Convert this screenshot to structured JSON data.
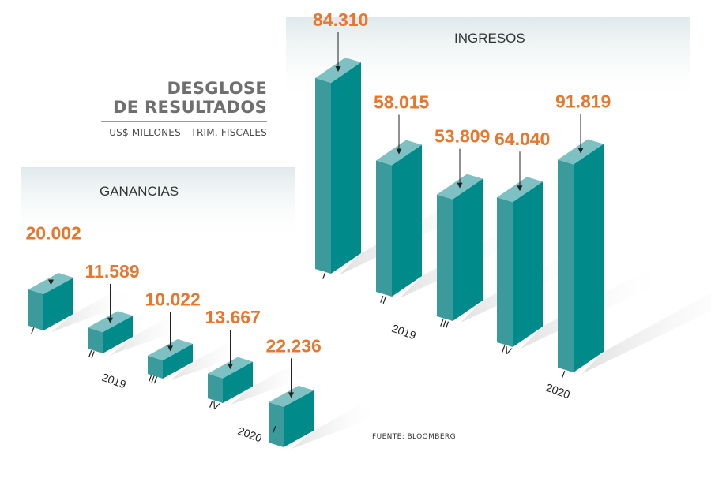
{
  "title_line1": "DESGLOSE",
  "title_line2": "DE RESULTADOS",
  "subtitle": "US$ MILLONES - TRIM. FISCALES",
  "source": "FUENTE: BLOOMBERG",
  "colors": {
    "bar_front": "#008a8a",
    "bar_side": "#3a9a9c",
    "bar_top": "#7fc1c2",
    "value_label": "#e8772e",
    "panel": "#e3ecee",
    "text": "#333333"
  },
  "chart_data": [
    {
      "type": "bar",
      "title": "GANANCIAS",
      "categories": [
        "I",
        "II",
        "III",
        "IV",
        "I"
      ],
      "year_labels": [
        "2019",
        "2020"
      ],
      "values": [
        20002,
        11589,
        10022,
        13667,
        22236
      ],
      "value_labels": [
        "20.002",
        "11.589",
        "10.022",
        "13.667",
        "22.236"
      ]
    },
    {
      "type": "bar",
      "title": "INGRESOS",
      "categories": [
        "I",
        "II",
        "III",
        "IV",
        "I"
      ],
      "year_labels": [
        "2019",
        "2020"
      ],
      "values": [
        84310,
        58015,
        53809,
        64040,
        91819
      ],
      "value_labels": [
        "84.310",
        "58.015",
        "53.809",
        "64.040",
        "91.819"
      ]
    }
  ]
}
